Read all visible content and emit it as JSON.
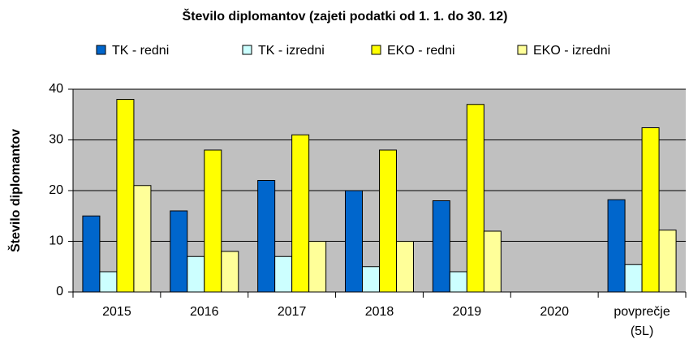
{
  "chart_data": {
    "type": "bar",
    "title": "Število diplomantov (zajeti podatki od 1. 1. do 30. 12)",
    "y_label": "Število diplomantov",
    "categories": [
      "2015",
      "2016",
      "2017",
      "2018",
      "2019",
      "2020",
      "povprečje (5L)"
    ],
    "series": [
      {
        "name": "TK - redni",
        "color": "#0066cc",
        "values": [
          15,
          16,
          22,
          20,
          18,
          null,
          18.2
        ]
      },
      {
        "name": "TK - izredni",
        "color": "#ccffff",
        "values": [
          4,
          7,
          7,
          5,
          4,
          null,
          5.4
        ]
      },
      {
        "name": "EKO - redni",
        "color": "#ffff00",
        "values": [
          38,
          28,
          31,
          28,
          37,
          null,
          32.4
        ]
      },
      {
        "name": "EKO - izredni",
        "color": "#ffff99",
        "values": [
          21,
          8,
          10,
          10,
          12,
          null,
          12.2
        ]
      }
    ],
    "ylim": [
      0,
      40
    ],
    "yticks": [
      0,
      10,
      20,
      30,
      40
    ],
    "grid": true,
    "plot_background": "#c0c0c0"
  }
}
